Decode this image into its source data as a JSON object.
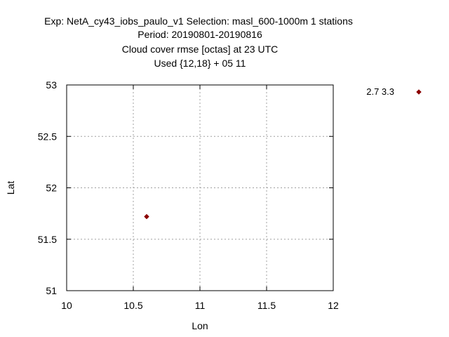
{
  "chart_data": {
    "type": "scatter",
    "title_lines": [
      "Exp: NetA_cy43_iobs_paulo_v1   Selection: masl_600-1000m      1 stations",
      "Period: 20190801-20190816",
      "Cloud cover rmse [octas] at  23 UTC",
      "Used {12,18} + 05 11"
    ],
    "xlabel": "Lon",
    "ylabel": "Lat",
    "xlim": [
      10,
      12
    ],
    "ylim": [
      51,
      53
    ],
    "xticks": [
      10,
      10.5,
      11,
      11.5,
      12
    ],
    "yticks": [
      51,
      51.5,
      52,
      52.5,
      53
    ],
    "xtick_labels": [
      "10",
      "10.5",
      "11",
      "11.5",
      "12"
    ],
    "ytick_labels": [
      "51",
      "51.5",
      "52",
      "52.5",
      "53"
    ],
    "grid": true,
    "legend_position": "top-right",
    "series": [
      {
        "name": "2.7 3.3",
        "color": "#8b0000",
        "marker": "diamond",
        "points": [
          {
            "x": 10.6,
            "y": 51.72
          }
        ]
      }
    ]
  }
}
